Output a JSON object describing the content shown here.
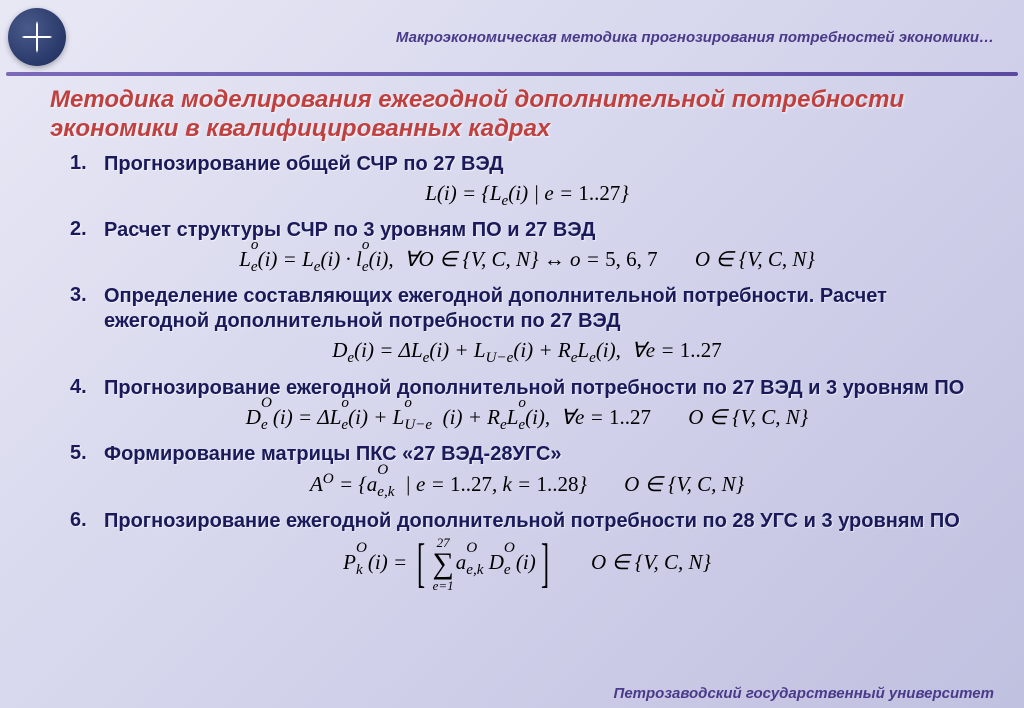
{
  "header": {
    "subtitle": "Макроэкономическая методика прогнозирования потребностей экономики…"
  },
  "title": "Методика моделирования ежегодной дополнительной потребности экономики в квалифицированных кадрах",
  "items": [
    {
      "num": "1.",
      "text": "Прогнозирование общей СЧР по 27 ВЭД"
    },
    {
      "num": "2.",
      "text": "Расчет структуры СЧР по 3 уровням ПО и 27 ВЭД"
    },
    {
      "num": "3.",
      "text": "Определение составляющих ежегодной дополнительной потребности. Расчет ежегодной дополнительной потребности по 27 ВЭД"
    },
    {
      "num": "4.",
      "text": "Прогнозирование ежегодной дополнительной потребности по 27 ВЭД и 3 уровням ПО"
    },
    {
      "num": "5.",
      "text": "Формирование матрицы ПКС «27 ВЭД-28УГС»"
    },
    {
      "num": "6.",
      "text": "Прогнозирование ежегодной дополнительной потребности по 28 УГС и 3 уровням ПО"
    }
  ],
  "formulas": {
    "f1": "L(i) = { L_e(i) | e = 1..27 }",
    "f2_main": "L_e^o(i) = L_e(i) · l_e^o(i), ∀O ∈ {V, C, N} ↔ o = 5, 6, 7",
    "f2_side": "O ∈ {V, C, N}",
    "f3": "D_e(i) = ΔL_e(i) + L_{U-e}(i) + R_e L_e(i), ∀e = 1..27",
    "f4_main": "D_e^O(i) = ΔL_e^o(i) + L_{U-e}^o(i) + R_e L_e^o(i), ∀e = 1..27",
    "f4_side": "O ∈ {V, C, N}",
    "f5_main": "A^O = { a_{e,k}^O | e = 1..27, k = 1..28 }",
    "f5_side": "O ∈ {V, C, N}",
    "f6_upper": "27",
    "f6_lower": "e=1",
    "f6_side": "O ∈ {V, C, N}"
  },
  "footer": "Петрозаводский государственный университет",
  "colors": {
    "title_color": "#c04040",
    "item_color": "#1a1a5a",
    "header_color": "#4a3a8a",
    "divider_color": "#5a4aa0",
    "bg_start": "#e8e8f5",
    "bg_end": "#c0c0e0"
  },
  "typography": {
    "title_fontsize": 24,
    "item_fontsize": 20,
    "formula_fontsize": 21,
    "header_fontsize": 15
  }
}
